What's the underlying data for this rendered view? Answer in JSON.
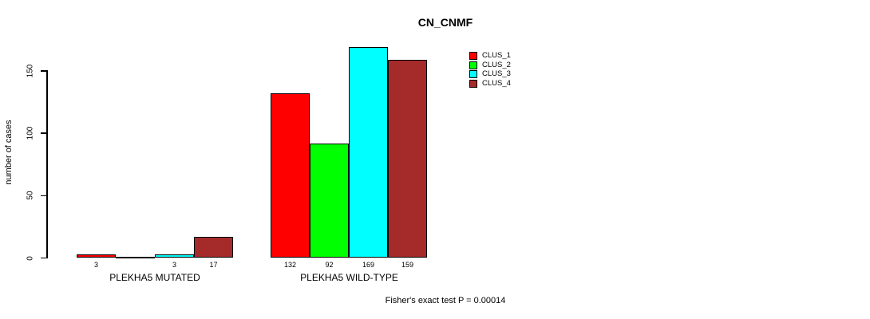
{
  "chart_data": {
    "type": "bar",
    "title": "CN_CNMF",
    "ylabel": "number of cases",
    "xlabel": "",
    "categories": [
      "PLEKHA5 MUTATED",
      "PLEKHA5 WILD-TYPE"
    ],
    "series": [
      {
        "name": "CLUS_1",
        "color": "#FF0000",
        "values": [
          3,
          132
        ]
      },
      {
        "name": "CLUS_2",
        "color": "#00FF00",
        "values": [
          0,
          92
        ]
      },
      {
        "name": "CLUS_3",
        "color": "#00FFFF",
        "values": [
          3,
          169
        ]
      },
      {
        "name": "CLUS_4",
        "color": "#A52A2A",
        "values": [
          17,
          159
        ]
      }
    ],
    "bar_labels": [
      [
        "3",
        "",
        "3",
        "17"
      ],
      [
        "132",
        "92",
        "169",
        "159"
      ]
    ],
    "yticks": [
      0,
      50,
      100,
      150
    ],
    "ylim": [
      0,
      169
    ],
    "grid": false,
    "legend_position": "top-right-inside",
    "annotation": "Fisher's exact test P = 0.00014"
  }
}
